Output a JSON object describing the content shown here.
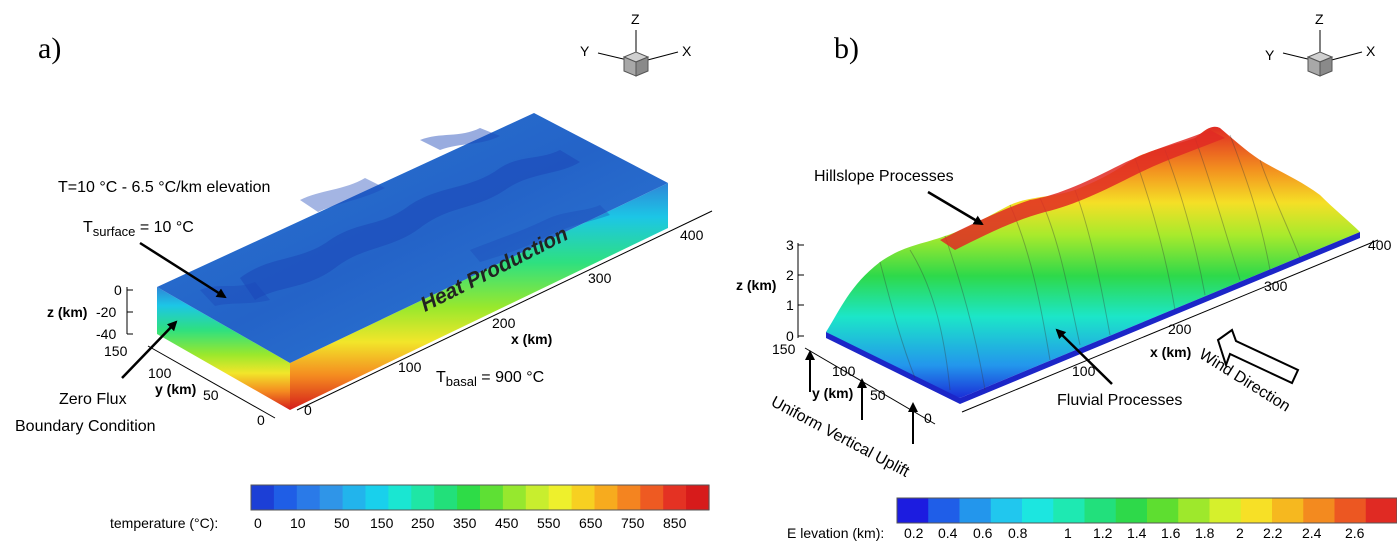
{
  "panel_a": {
    "letter": "a)",
    "axes_icon": {
      "z": "Z",
      "y": "Y",
      "x": "X"
    },
    "label_temp_lapse": "T=10 °C - 6.5 °C/km elevation",
    "label_t_surface_prefix": "T",
    "label_t_surface_sub": "surface",
    "label_t_surface_value": " = 10 °C",
    "label_heat": "Heat Production",
    "label_t_basal_prefix": "T",
    "label_t_basal_sub": "basal",
    "label_t_basal_value": " = 900 °C",
    "label_zero_flux_1": "Zero Flux",
    "label_zero_flux_2": "Boundary Condition",
    "z_axis_label": "z (km)",
    "z_ticks": [
      "0",
      "-20",
      "-40"
    ],
    "y_axis_label": "y (km)",
    "y_ticks": [
      "150",
      "100",
      "50",
      "0"
    ],
    "x_axis_label": "x (km)",
    "x_ticks": [
      "0",
      "100",
      "200",
      "300",
      "400"
    ],
    "colorbar": {
      "label": "temperature (°C):",
      "ticks": [
        "0",
        "10",
        "50",
        "150",
        "250",
        "350",
        "450",
        "550",
        "650",
        "750",
        "850"
      ],
      "colors": [
        "#1c3fd6",
        "#1f5ee6",
        "#2a7ae8",
        "#2f95e8",
        "#22b4ec",
        "#19d0ec",
        "#1ae6d2",
        "#1fe6a5",
        "#22e07a",
        "#2edc47",
        "#5ee034",
        "#96e82e",
        "#c8ee2e",
        "#eef02c",
        "#f7d021",
        "#f7ab1e",
        "#f48420",
        "#ee5a22",
        "#e43223",
        "#d71b1b"
      ]
    }
  },
  "panel_b": {
    "letter": "b)",
    "axes_icon": {
      "z": "Z",
      "y": "Y",
      "x": "X"
    },
    "label_hillslope": "Hillslope Processes",
    "label_fluvial": "Fluvial Processes",
    "label_wind": "Wind Direction",
    "label_uplift": "Uniform Vertical Uplift",
    "z_axis_label": "z (km)",
    "z_ticks": [
      "3",
      "2",
      "1",
      "0"
    ],
    "y_axis_label": "y (km)",
    "y_ticks": [
      "150",
      "100",
      "50",
      "0"
    ],
    "x_axis_label": "x (km)",
    "x_ticks": [
      "100",
      "200",
      "300",
      "400"
    ],
    "colorbar": {
      "label": "E levation (km):",
      "ticks": [
        "0.2",
        "0.4",
        "0.6",
        "0.8",
        "1",
        "1.2",
        "1.4",
        "1.6",
        "1.8",
        "2",
        "2.2",
        "2.4",
        "2.6"
      ],
      "colors": [
        "#1c1ce0",
        "#1f5ee8",
        "#2396ec",
        "#21c7ee",
        "#1ce6e0",
        "#1ee9b2",
        "#22e07c",
        "#2ed94a",
        "#5ede30",
        "#9ee82c",
        "#d6f02c",
        "#f7e026",
        "#f6b81f",
        "#f38a1f",
        "#ec5722",
        "#e02a23"
      ]
    }
  },
  "colors": {
    "surface_blue": "#2a6fd0",
    "deep_blue": "#1a3aa8",
    "terrain_red": "#e8301f"
  }
}
